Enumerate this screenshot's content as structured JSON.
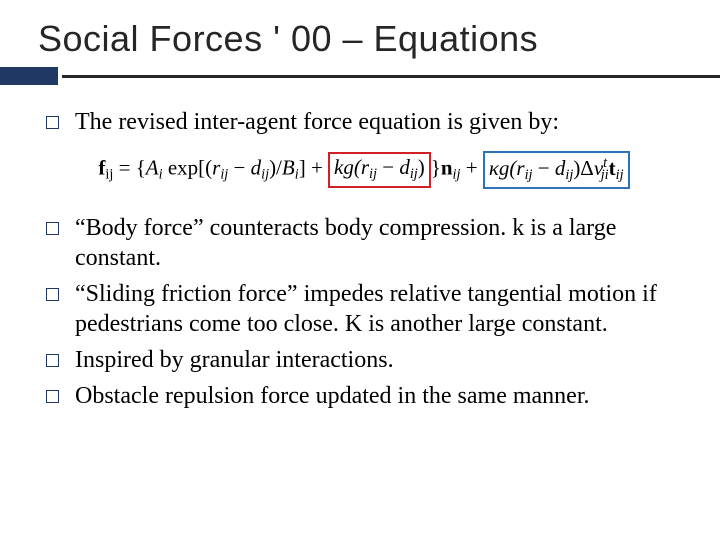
{
  "title": "Social Forces ' 00 – Equations",
  "colors": {
    "accent": "#1f3864",
    "rule": "#262626",
    "text": "#000000",
    "box_red": "#d22027",
    "box_blue": "#2e74b5"
  },
  "bullets": {
    "b1": "The revised inter-agent force equation is given by:",
    "b2": "“Body force” counteracts body compression. k is a large constant.",
    "b3": "“Sliding friction force” impedes relative tangential motion if pedestrians come too close.  K is another large constant.",
    "b4": "Inspired by granular interactions.",
    "b5": "Obstacle repulsion force updated in the same manner."
  },
  "equation": {
    "lhs_base": "f",
    "lhs_sub": "ij",
    "eq": " = ",
    "lbrace": "{",
    "term1_A": "A",
    "term1_i": "i",
    "term1_exp": " exp[(",
    "term1_r": "r",
    "term1_ij": "ij",
    "term1_minus": " − ",
    "term1_d": "d",
    "term1_close": ")/",
    "term1_B": "B",
    "term1_end": "]",
    "plus1": " + ",
    "term2_k": "kg(",
    "term2_r": "r",
    "term2_ij": "ij",
    "term2_minus": " − ",
    "term2_d": "d",
    "term2_close": ")",
    "rbrace": "}",
    "n_base": "n",
    "n_sub": "ij",
    "plus2": " + ",
    "term3_k": "κg(",
    "term3_r": "r",
    "term3_ij": "ij",
    "term3_minus": " − ",
    "term3_d": "d",
    "term3_close": ")Δ",
    "term3_v": "v",
    "term3_vsub": "ji",
    "term3_vsup": "t",
    "t_base": "t",
    "t_sub": "ij"
  }
}
